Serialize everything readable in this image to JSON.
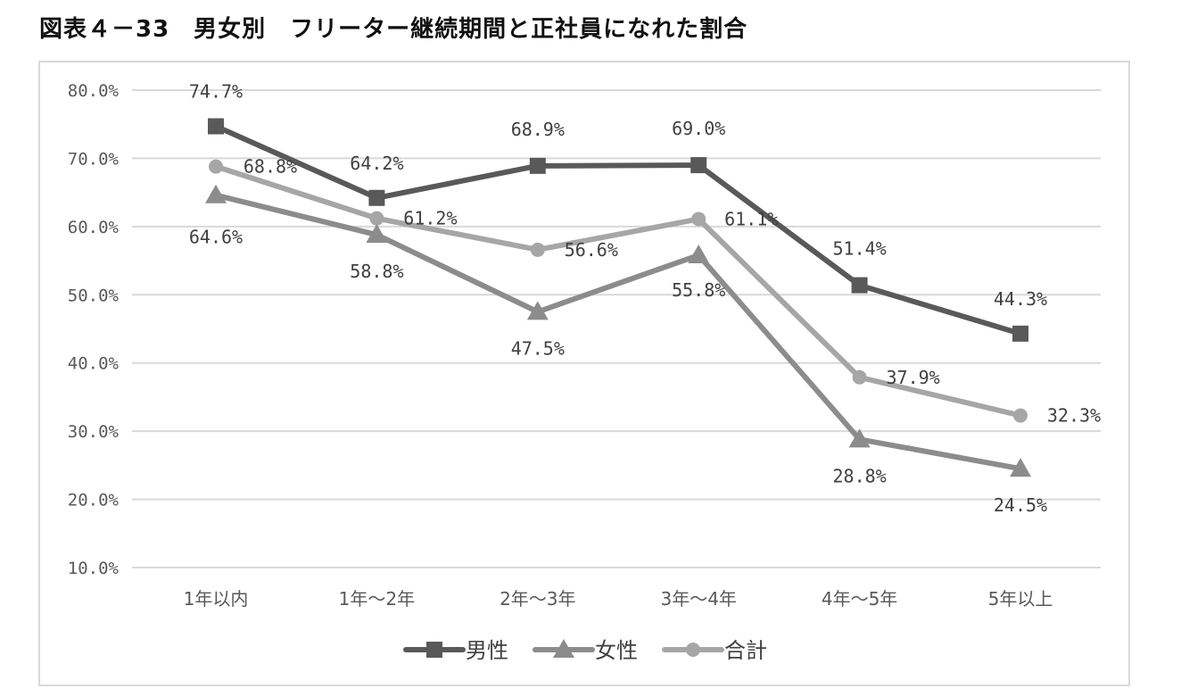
{
  "title": "図表４－33　男女別　フリーター継続期間と正社員になれた割合",
  "chart_data": {
    "type": "line",
    "title": "",
    "xlabel": "",
    "ylabel": "",
    "categories": [
      "1年以内",
      "1年～2年",
      "2年～3年",
      "3年～4年",
      "4年～5年",
      "5年以上"
    ],
    "ylim": [
      10,
      80
    ],
    "yticks": [
      "10.0%",
      "20.0%",
      "30.0%",
      "40.0%",
      "50.0%",
      "60.0%",
      "70.0%",
      "80.0%"
    ],
    "grid": true,
    "legend_position": "bottom",
    "series": [
      {
        "name": "男性",
        "marker": "square",
        "color": "#595959",
        "values": [
          74.7,
          64.2,
          68.9,
          69.0,
          51.4,
          44.3
        ],
        "labels": [
          "74.7%",
          "64.2%",
          "68.9%",
          "69.0%",
          "51.4%",
          "44.3%"
        ]
      },
      {
        "name": "女性",
        "marker": "triangle",
        "color": "#8c8c8c",
        "values": [
          64.6,
          58.8,
          47.5,
          55.8,
          28.8,
          24.5
        ],
        "labels": [
          "64.6%",
          "58.8%",
          "47.5%",
          "55.8%",
          "28.8%",
          "24.5%"
        ]
      },
      {
        "name": "合計",
        "marker": "circle",
        "color": "#a6a6a6",
        "values": [
          68.8,
          61.2,
          56.6,
          61.1,
          37.9,
          32.3
        ],
        "labels": [
          "68.8%",
          "61.2%",
          "56.6%",
          "61.1%",
          "37.9%",
          "32.3%"
        ]
      }
    ]
  }
}
